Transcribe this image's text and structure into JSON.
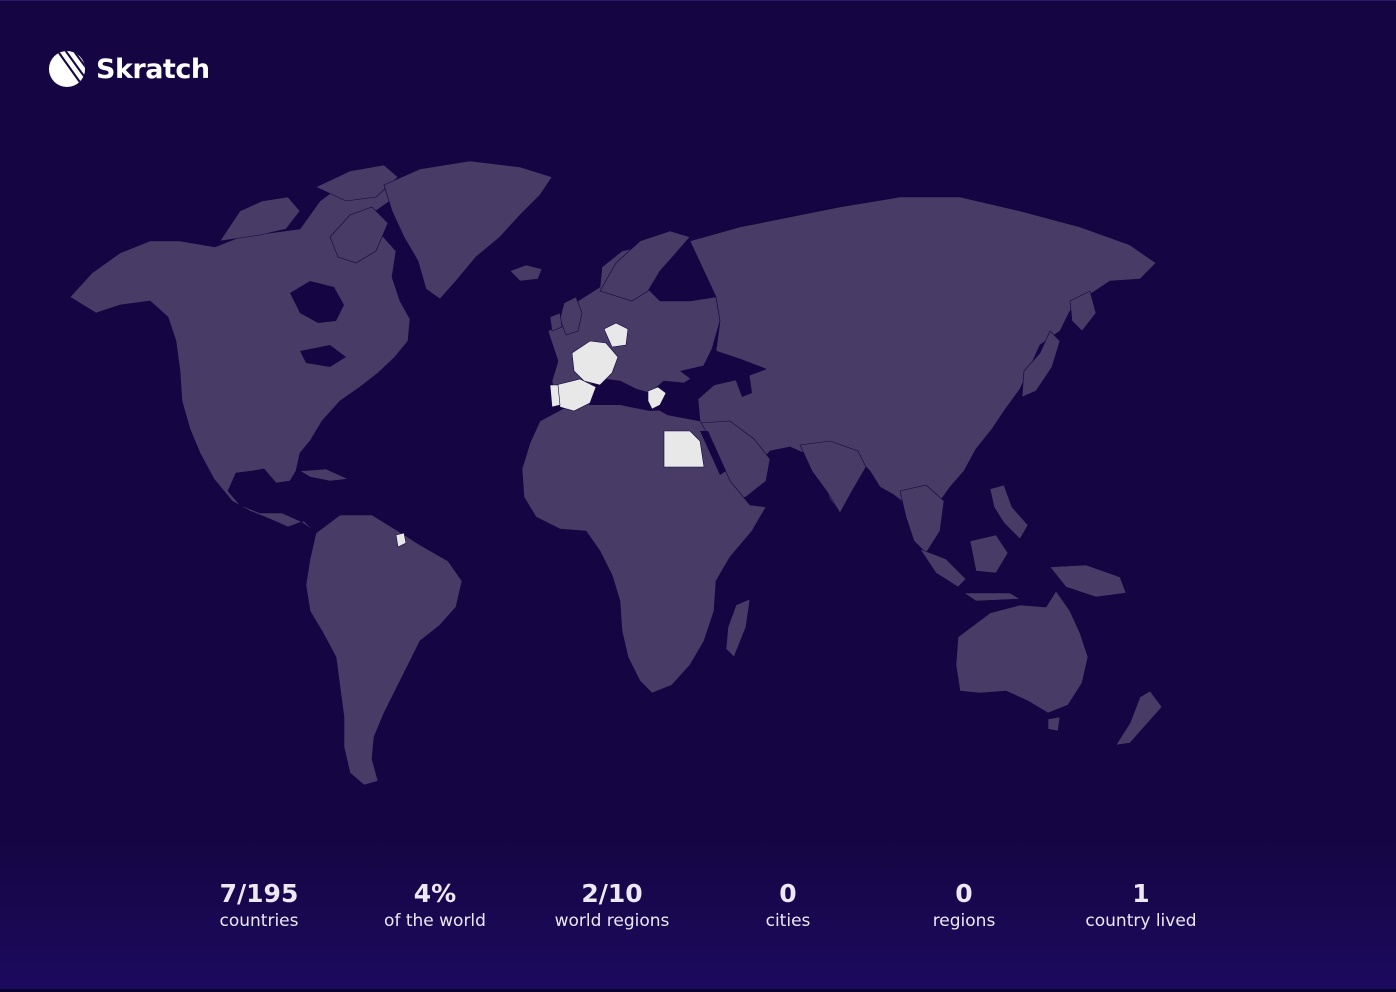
{
  "brand": {
    "name": "Skratch"
  },
  "colors": {
    "background": "#150542",
    "land": "#483c66",
    "visited": "#e8e8e8",
    "text": "#ece9f5"
  },
  "map": {
    "visited_countries_icons": [
      "france-region",
      "switzerland-region",
      "spain-region",
      "portugal-region",
      "greece-region",
      "egypt-region",
      "french-guiana-region"
    ]
  },
  "stats": [
    {
      "value": "7/195",
      "label": "countries"
    },
    {
      "value": "4%",
      "label": "of the world"
    },
    {
      "value": "2/10",
      "label": "world regions"
    },
    {
      "value": "0",
      "label": "cities"
    },
    {
      "value": "0",
      "label": "regions"
    },
    {
      "value": "1",
      "label": "country lived"
    }
  ]
}
